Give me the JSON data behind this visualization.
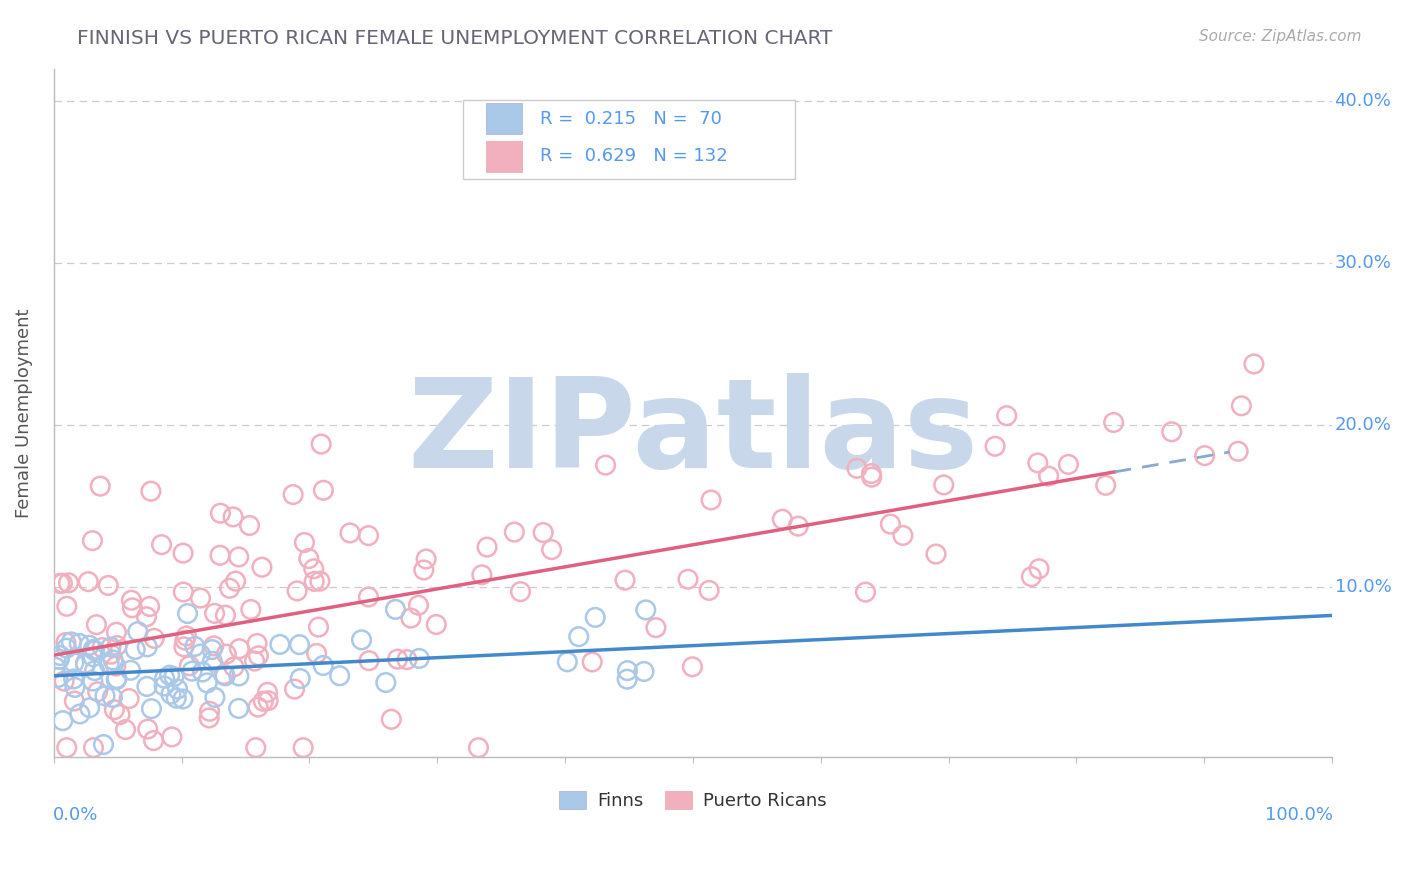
{
  "title": "FINNISH VS PUERTO RICAN FEMALE UNEMPLOYMENT CORRELATION CHART",
  "source": "Source: ZipAtlas.com",
  "ylabel": "Female Unemployment",
  "ytick_values": [
    0.0,
    0.1,
    0.2,
    0.3,
    0.4
  ],
  "ytick_labels_right": [
    "",
    "10.0%",
    "20.0%",
    "30.0%",
    "40.0%"
  ],
  "xlim": [
    0.0,
    1.0
  ],
  "ylim": [
    -0.005,
    0.42
  ],
  "color_finns": "#aac8e8",
  "color_pr": "#f2b0be",
  "color_finn_line": "#4488cc",
  "color_pr_line": "#e06080",
  "color_finn_line_dash": "#88aacc",
  "watermark": "ZIPatlas",
  "watermark_color": "#c8d8ea",
  "background_color": "#ffffff",
  "grid_color": "#cccccc",
  "tick_color": "#5599ee"
}
